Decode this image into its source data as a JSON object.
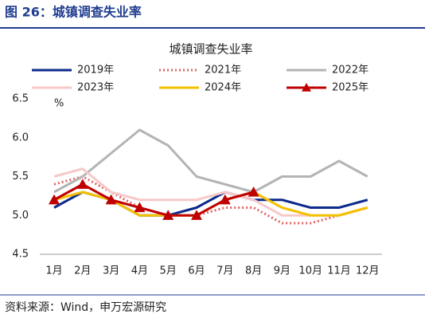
{
  "header": {
    "title": "图 26：城镇调查失业率"
  },
  "footer": {
    "source": "资料来源：Wind，申万宏源研究"
  },
  "chart_data": {
    "type": "line",
    "title": "城镇调查失业率",
    "y_unit": "%",
    "categories": [
      "1月",
      "2月",
      "3月",
      "4月",
      "5月",
      "6月",
      "7月",
      "8月",
      "9月",
      "10月",
      "11月",
      "12月"
    ],
    "ylim": [
      4.5,
      6.5
    ],
    "yticks": [
      {
        "value": 4.5,
        "label": "4.5"
      },
      {
        "value": 5,
        "label": "5.0"
      },
      {
        "value": 5.5,
        "label": "5.5"
      },
      {
        "value": 6,
        "label": "6.0"
      },
      {
        "value": 6.5,
        "label": "6.5"
      }
    ],
    "series": [
      {
        "name": "2019年",
        "color": "#0b2a8c",
        "style": "solid",
        "values": [
          5.1,
          5.3,
          5.2,
          5.0,
          5.0,
          5.1,
          5.3,
          5.2,
          5.2,
          5.1,
          5.1,
          5.2
        ]
      },
      {
        "name": "2021年",
        "color": "#e06464",
        "style": "dotted",
        "values": [
          5.4,
          5.5,
          5.3,
          5.1,
          5.0,
          5.0,
          5.1,
          5.1,
          4.9,
          4.9,
          5.0,
          5.1
        ]
      },
      {
        "name": "2022年",
        "color": "#b4b4b4",
        "style": "solid",
        "values": [
          5.3,
          5.5,
          5.8,
          6.1,
          5.9,
          5.5,
          5.4,
          5.3,
          5.5,
          5.5,
          5.7,
          5.5
        ]
      },
      {
        "name": "2023年",
        "color": "#f7c9c9",
        "style": "solid",
        "values": [
          5.5,
          5.6,
          5.3,
          5.2,
          5.2,
          5.2,
          5.3,
          5.2,
          5.0,
          5.0,
          5.0,
          5.1
        ]
      },
      {
        "name": "2024年",
        "color": "#f5c000",
        "style": "solid",
        "values": [
          5.2,
          5.3,
          5.2,
          5.0,
          5.0,
          5.0,
          5.2,
          5.3,
          5.1,
          5.0,
          5.0,
          5.1
        ]
      },
      {
        "name": "2025年",
        "color": "#c00000",
        "style": "solid",
        "marker": "triangle",
        "values": [
          5.2,
          5.4,
          5.2,
          5.1,
          5.0,
          5.0,
          5.2,
          5.3,
          null,
          null,
          null,
          null
        ]
      }
    ]
  }
}
